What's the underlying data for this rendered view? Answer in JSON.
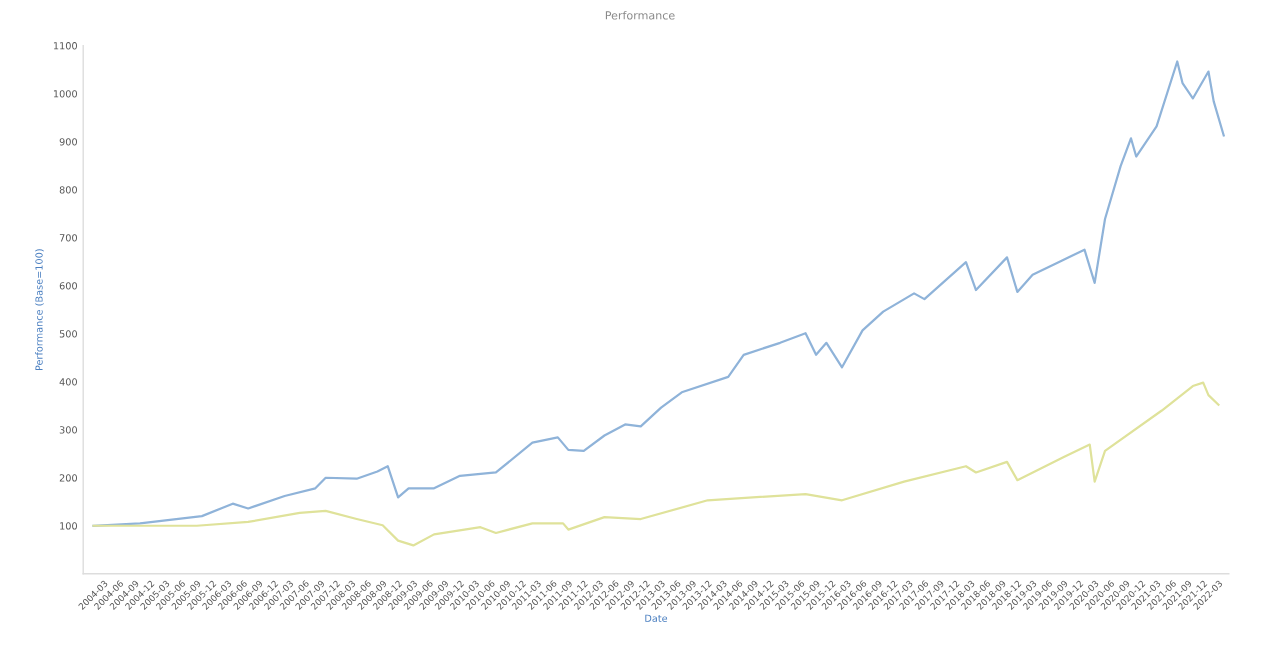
{
  "chart_data": {
    "type": "line",
    "title": "Performance",
    "xlabel": "Date",
    "ylabel": "Performance (Base=100)",
    "series": [
      {
        "color": "#8fb3d9",
        "x": [
          "2004-01",
          "2004-10",
          "2005-10",
          "2006-04",
          "2006-07",
          "2007-02",
          "2007-08",
          "2007-10",
          "2008-04",
          "2008-08",
          "2008-10",
          "2008-12",
          "2009-02",
          "2009-07",
          "2009-12",
          "2010-07",
          "2011-02",
          "2011-07",
          "2011-09",
          "2011-12",
          "2012-04",
          "2012-08",
          "2012-11",
          "2013-03",
          "2013-07",
          "2014-04",
          "2014-07",
          "2015-02",
          "2015-07",
          "2015-09",
          "2015-11",
          "2016-02",
          "2016-06",
          "2016-10",
          "2017-04",
          "2017-06",
          "2018-02",
          "2018-04",
          "2018-10",
          "2018-12",
          "2019-03",
          "2019-08",
          "2020-01",
          "2020-03",
          "2020-05",
          "2020-08",
          "2020-10",
          "2020-11",
          "2021-03",
          "2021-07",
          "2021-08",
          "2021-10",
          "2022-01",
          "2022-02",
          "2022-04"
        ],
        "values": [
          100,
          105,
          120,
          146,
          136,
          162,
          178,
          200,
          198,
          213,
          224,
          159,
          178,
          178,
          204,
          211,
          273,
          284,
          258,
          256,
          288,
          311,
          307,
          346,
          378,
          410,
          456,
          481,
          501,
          456,
          481,
          430,
          507,
          546,
          584,
          572,
          649,
          591,
          659,
          587,
          623,
          649,
          675,
          606,
          739,
          849,
          907,
          869,
          932,
          1067,
          1022,
          990,
          1046,
          984,
          913
        ]
      },
      {
        "color": "#dfe29a",
        "x": [
          "2004-01",
          "2005-09",
          "2006-07",
          "2007-05",
          "2007-10",
          "2008-04",
          "2008-09",
          "2008-12",
          "2009-03",
          "2009-07",
          "2010-04",
          "2010-07",
          "2011-02",
          "2011-08",
          "2011-09",
          "2012-04",
          "2012-11",
          "2013-12",
          "2015-07",
          "2016-02",
          "2017-02",
          "2018-02",
          "2018-04",
          "2018-10",
          "2018-12",
          "2019-09",
          "2020-02",
          "2020-03",
          "2020-05",
          "2021-04",
          "2021-10",
          "2021-12",
          "2022-01",
          "2022-03"
        ],
        "values": [
          100,
          100,
          108,
          127,
          131,
          114,
          101,
          69,
          59,
          82,
          97,
          85,
          105,
          105,
          92,
          118,
          114,
          153,
          166,
          153,
          192,
          224,
          211,
          233,
          195,
          243,
          269,
          192,
          256,
          340,
          391,
          398,
          372,
          352
        ]
      }
    ],
    "xlim": [
      "2003-11",
      "2022-05"
    ],
    "xticks": [
      "2004-03",
      "2004-06",
      "2004-09",
      "2004-12",
      "2005-03",
      "2005-06",
      "2005-09",
      "2005-12",
      "2006-03",
      "2006-06",
      "2006-09",
      "2006-12",
      "2007-03",
      "2007-06",
      "2007-09",
      "2007-12",
      "2008-03",
      "2008-06",
      "2008-09",
      "2008-12",
      "2009-03",
      "2009-06",
      "2009-09",
      "2009-12",
      "2010-03",
      "2010-06",
      "2010-09",
      "2010-12",
      "2011-03",
      "2011-06",
      "2011-09",
      "2011-12",
      "2012-03",
      "2012-06",
      "2012-09",
      "2012-12",
      "2013-03",
      "2013-06",
      "2013-09",
      "2013-12",
      "2014-03",
      "2014-06",
      "2014-09",
      "2014-12",
      "2015-03",
      "2015-06",
      "2015-09",
      "2015-12",
      "2016-03",
      "2016-06",
      "2016-09",
      "2016-12",
      "2017-03",
      "2017-06",
      "2017-09",
      "2017-12",
      "2018-03",
      "2018-06",
      "2018-09",
      "2018-12",
      "2019-03",
      "2019-06",
      "2019-09",
      "2019-12",
      "2020-03",
      "2020-06",
      "2020-09",
      "2020-12",
      "2021-03",
      "2021-06",
      "2021-09",
      "2021-12",
      "2022-03"
    ],
    "ylim": [
      0,
      1100
    ],
    "yticks": [
      100,
      200,
      300,
      400,
      500,
      600,
      700,
      800,
      900,
      1000,
      1100
    ],
    "grid": false,
    "marker": "none",
    "line_style": "solid"
  }
}
